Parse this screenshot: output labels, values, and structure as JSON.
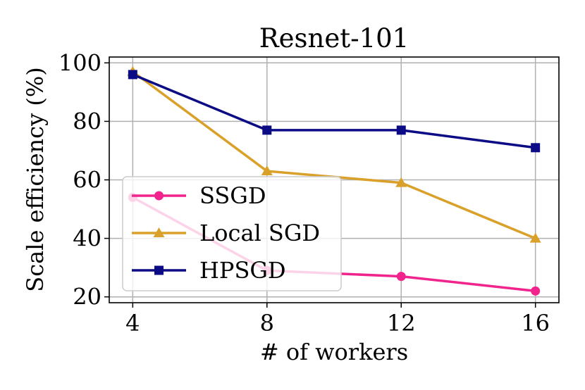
{
  "chart_data": {
    "type": "line",
    "title": "Resnet-101",
    "xlabel": "# of workers",
    "ylabel": "Scale efficiency (%)",
    "x": [
      4,
      8,
      12,
      16
    ],
    "xticks": [
      "4",
      "8",
      "12",
      "16"
    ],
    "yticks": [
      "20",
      "40",
      "60",
      "80",
      "100"
    ],
    "xlim": [
      3.3,
      16.7
    ],
    "ylim": [
      18,
      102
    ],
    "grid": true,
    "legend_position": "lower-left",
    "series": [
      {
        "name": "SSGD",
        "values": [
          54,
          29,
          27,
          22
        ],
        "color": "#f0248c",
        "marker": "circle"
      },
      {
        "name": "Local SGD",
        "values": [
          97,
          63,
          59,
          40
        ],
        "color": "#daa12a",
        "marker": "triangle"
      },
      {
        "name": "HPSGD",
        "values": [
          96,
          77,
          77,
          71
        ],
        "color": "#0b0b85",
        "marker": "square"
      }
    ]
  }
}
